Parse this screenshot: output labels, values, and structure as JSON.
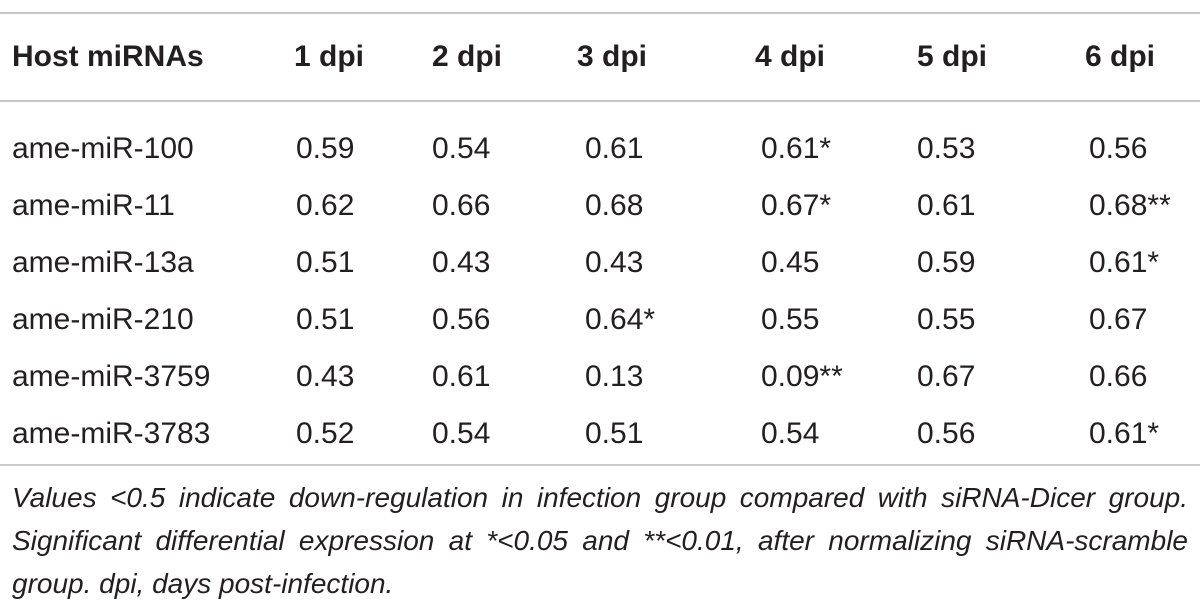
{
  "table": {
    "headers": [
      "Host miRNAs",
      "1 dpi",
      "2 dpi",
      "3 dpi",
      "4 dpi",
      "5 dpi",
      "6 dpi"
    ],
    "rows": [
      [
        "ame-miR-100",
        "0.59",
        "0.54",
        "0.61",
        "0.61*",
        "0.53",
        "0.56"
      ],
      [
        "ame-miR-11",
        "0.62",
        "0.66",
        "0.68",
        "0.67*",
        "0.61",
        "0.68**"
      ],
      [
        "ame-miR-13a",
        "0.51",
        "0.43",
        "0.43",
        "0.45",
        "0.59",
        "0.61*"
      ],
      [
        "ame-miR-210",
        "0.51",
        "0.56",
        "0.64*",
        "0.55",
        "0.55",
        "0.67"
      ],
      [
        "ame-miR-3759",
        "0.43",
        "0.61",
        "0.13",
        "0.09**",
        "0.67",
        "0.66"
      ],
      [
        "ame-miR-3783",
        "0.52",
        "0.54",
        "0.51",
        "0.54",
        "0.56",
        "0.61*"
      ]
    ]
  },
  "footnote": "Values <0.5 indicate down-regulation in infection group compared with siRNA-Dicer group. Significant differential expression at *<0.05 and **<0.01, after normalizing siRNA-scramble group. dpi, days post-infection."
}
